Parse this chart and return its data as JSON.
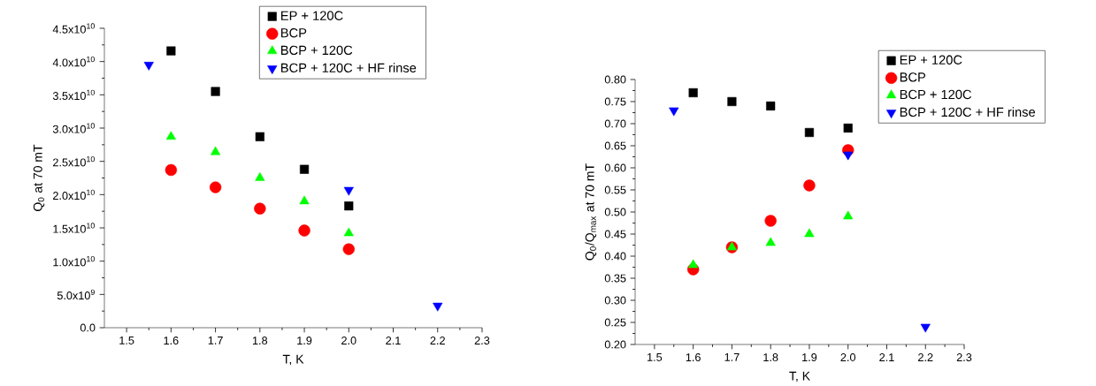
{
  "chart_data": [
    {
      "type": "scatter",
      "xlabel": "T, K",
      "ylabel": "Q$_{0}$ at 70 mT",
      "legend": "top right",
      "xlim": [
        1.45,
        2.3
      ],
      "ylim": [
        0,
        45000000000.0
      ],
      "xticks": [
        1.5,
        1.6,
        1.7,
        1.8,
        1.9,
        {
          "value": 2.0,
          "label": "2.0"
        },
        2.1,
        2.2,
        2.3
      ],
      "yticks": [
        {
          "value": 0,
          "label": "0.0"
        },
        {
          "value": 5000000000.0,
          "label": "5.0x10$^{9}$"
        },
        {
          "value": 10000000000.0,
          "label": "1.0x10$^{10}$"
        },
        {
          "value": 15000000000.0,
          "label": "1.5x10$^{10}$"
        },
        {
          "value": 20000000000.0,
          "label": "2.0x10$^{10}$"
        },
        {
          "value": 25000000000.0,
          "label": "2.5x10$^{10}$"
        },
        {
          "value": 30000000000.0,
          "label": "3.0x10$^{10}$"
        },
        {
          "value": 35000000000.0,
          "label": "3.5x10$^{10}$"
        },
        {
          "value": 40000000000.0,
          "label": "4.0x10$^{10}$"
        },
        {
          "value": 45000000000.0,
          "label": "4.5x10$^{10}$"
        }
      ],
      "series": [
        {
          "name": "EP + 120C",
          "color": "#000000",
          "marker": "square",
          "x": [
            1.6,
            1.7,
            1.8,
            1.9,
            2.0
          ],
          "values": [
            41600000000.0,
            35500000000.0,
            28700000000.0,
            23800000000.0,
            18300000000.0
          ]
        },
        {
          "name": "BCP",
          "color": "#ff0000",
          "marker": "circle",
          "x": [
            1.6,
            1.7,
            1.8,
            1.9,
            2.0
          ],
          "values": [
            23700000000.0,
            21100000000.0,
            17900000000.0,
            14600000000.0,
            11800000000.0
          ]
        },
        {
          "name": "BCP + 120C",
          "color": "#00ff00",
          "marker": "triangle",
          "x": [
            1.6,
            1.7,
            1.8,
            1.9,
            2.0
          ],
          "values": [
            28700000000.0,
            26400000000.0,
            22500000000.0,
            19000000000.0,
            14200000000.0
          ]
        },
        {
          "name": "BCP + 120C + HF rinse",
          "color": "#0000ff",
          "marker": "triangle down",
          "x": [
            1.55,
            2.0,
            2.2
          ],
          "values": [
            39500000000.0,
            20700000000.0,
            3300000000.0
          ]
        }
      ]
    },
    {
      "type": "scatter",
      "xlabel": "T, K",
      "ylabel": "Q$_{0}$/Q$_{max}$ at 70 mT",
      "legend": "top right",
      "xlim": [
        1.45,
        2.3
      ],
      "ylim": [
        0.2,
        0.8
      ],
      "xticks": [
        1.5,
        1.6,
        1.7,
        1.8,
        1.9,
        {
          "value": 2.0,
          "label": "2.0"
        },
        2.1,
        2.2,
        2.3
      ],
      "yticks": [
        {
          "value": 0.2,
          "label": "0.20"
        },
        0.25,
        {
          "value": 0.3,
          "label": "0.30"
        },
        0.35,
        {
          "value": 0.4,
          "label": "0.40"
        },
        0.45,
        {
          "value": 0.5,
          "label": "0.50"
        },
        0.55,
        {
          "value": 0.6,
          "label": "0.60"
        },
        0.65,
        {
          "value": 0.7,
          "label": "0.70"
        },
        0.75,
        {
          "value": 0.8,
          "label": "0.80"
        }
      ],
      "series": [
        {
          "name": "EP + 120C",
          "color": "#000000",
          "marker": "square",
          "x": [
            1.6,
            1.7,
            1.8,
            1.9,
            2.0
          ],
          "values": [
            0.77,
            0.75,
            0.74,
            0.68,
            0.69
          ]
        },
        {
          "name": "BCP",
          "color": "#ff0000",
          "marker": "circle",
          "x": [
            1.6,
            1.7,
            1.8,
            1.9,
            2.0
          ],
          "values": [
            0.37,
            0.42,
            0.48,
            0.56,
            0.64
          ]
        },
        {
          "name": "BCP + 120C",
          "color": "#00ff00",
          "marker": "triangle",
          "x": [
            1.6,
            1.7,
            1.8,
            1.9,
            2.0
          ],
          "values": [
            0.38,
            0.42,
            0.43,
            0.45,
            0.49
          ]
        },
        {
          "name": "BCP + 120C + HF rinse",
          "color": "#0000ff",
          "marker": "triangle down",
          "x": [
            1.55,
            2.0,
            2.2
          ],
          "values": [
            0.73,
            0.63,
            0.24
          ]
        }
      ]
    }
  ]
}
